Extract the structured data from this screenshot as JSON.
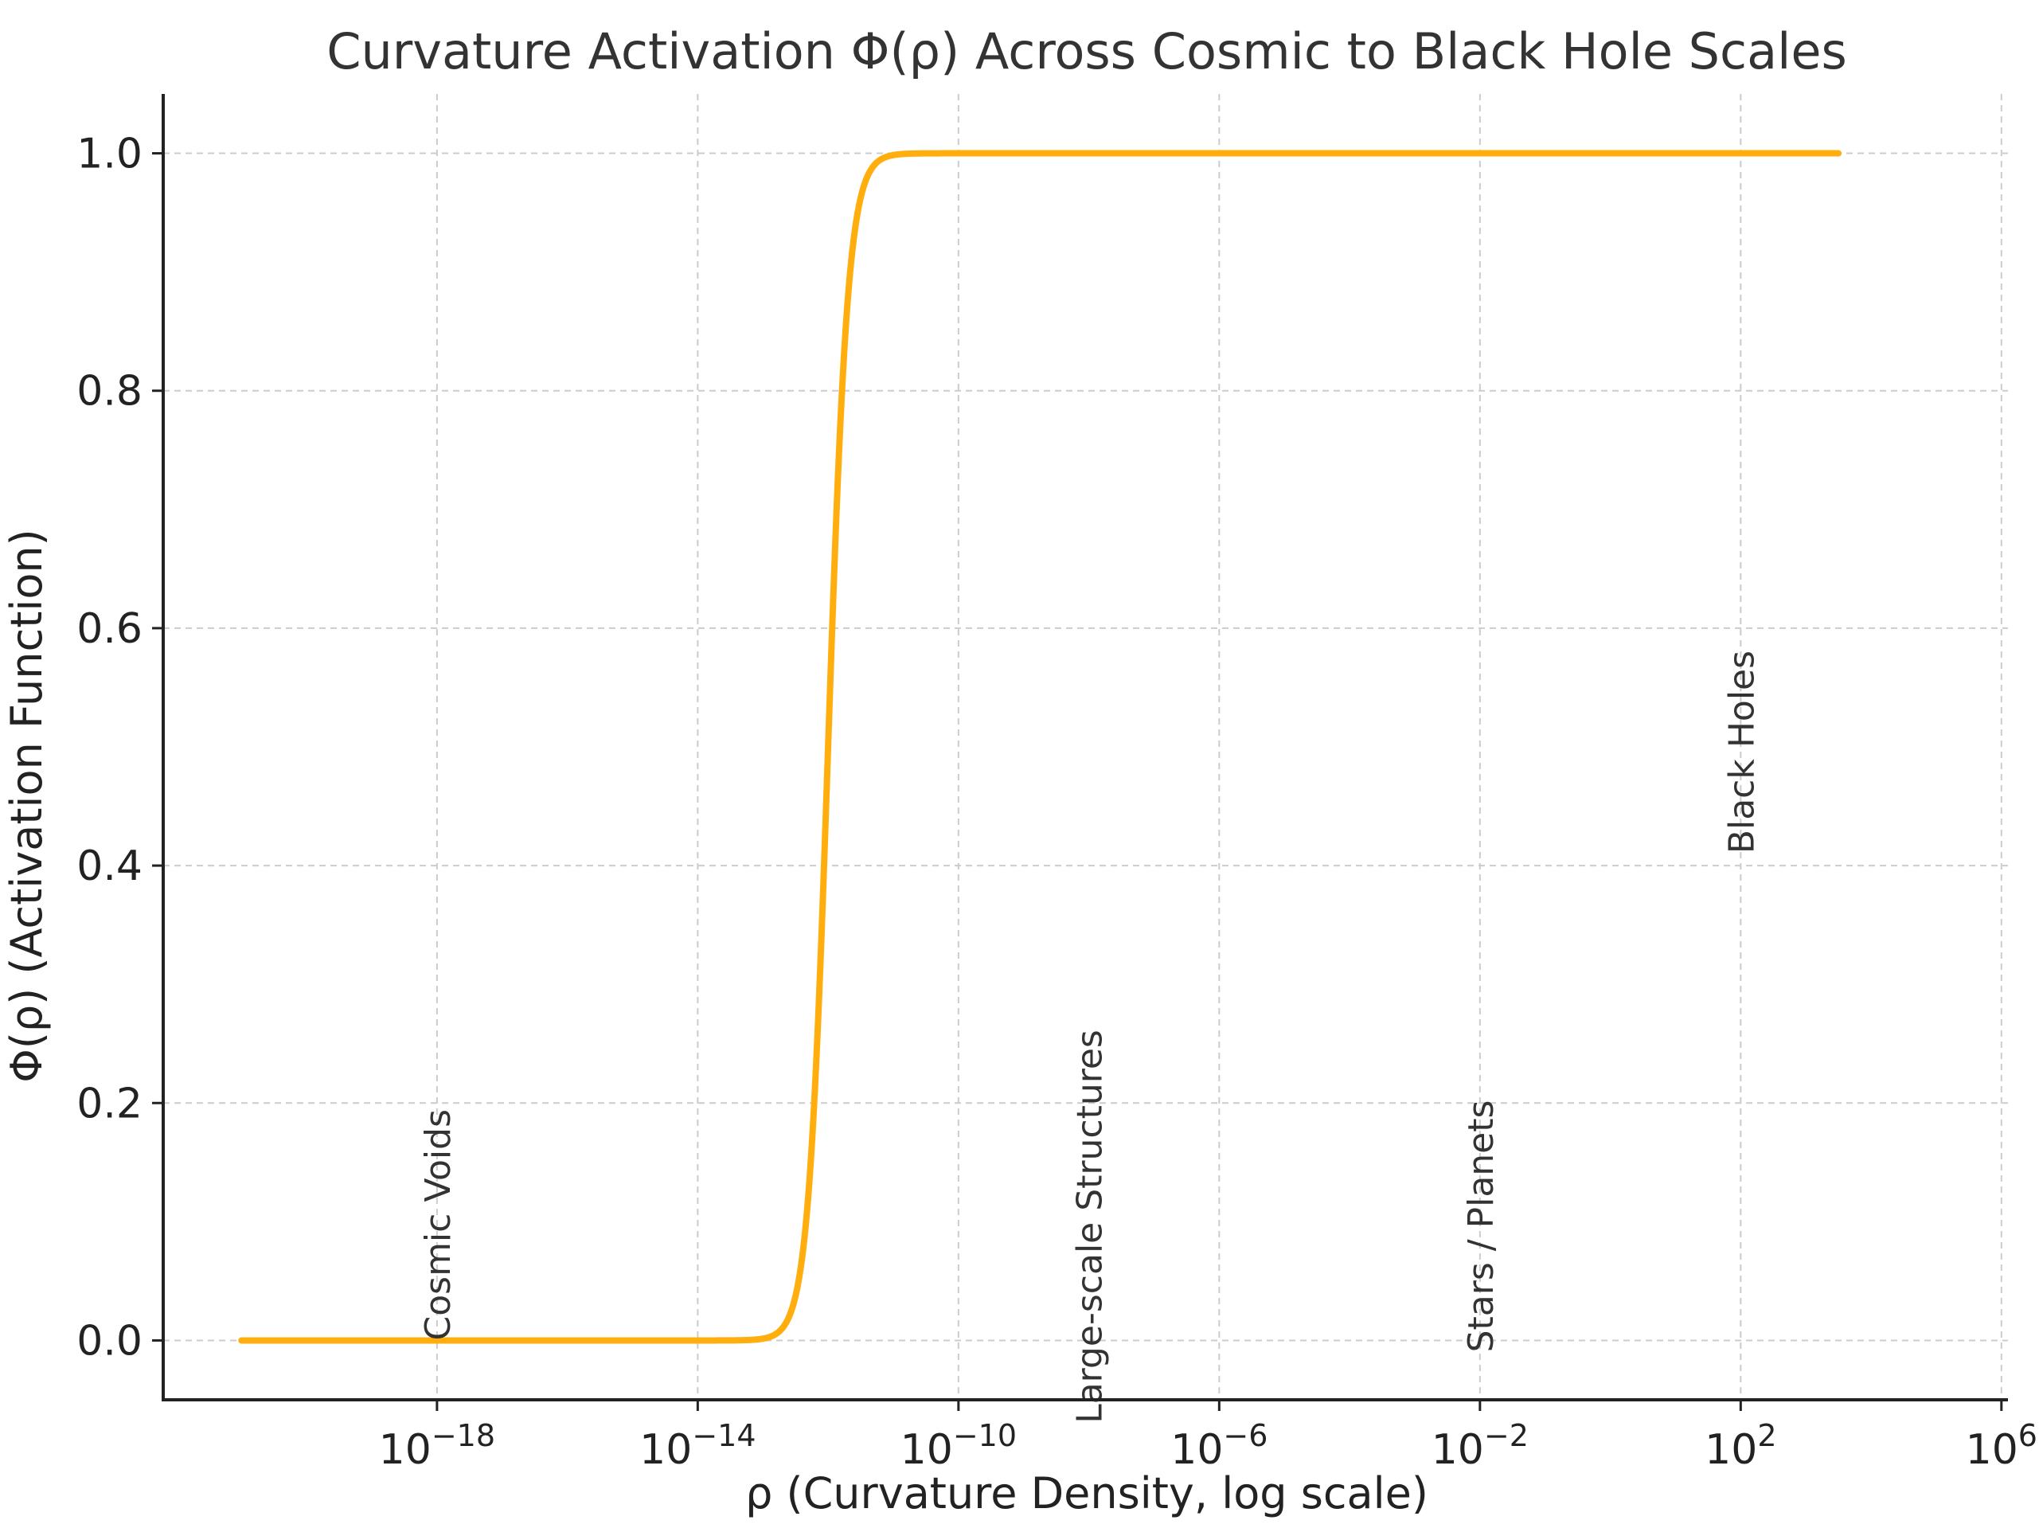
{
  "chart_data": {
    "type": "line",
    "title": "Curvature Activation Φ(ρ) Across Cosmic to Black Hole Scales",
    "xlabel": "ρ (Curvature Density, log scale)",
    "ylabel": "Φ(ρ) (Activation Function)",
    "xscale": "log",
    "xlim_log10": [
      -22.2,
      6.1
    ],
    "ylim": [
      -0.05,
      1.05
    ],
    "x_ticks_log10": [
      -18,
      -14,
      -10,
      -6,
      -2,
      2,
      6
    ],
    "x_tick_labels": [
      {
        "base": "10",
        "exp": "−18"
      },
      {
        "base": "10",
        "exp": "−14"
      },
      {
        "base": "10",
        "exp": "−10"
      },
      {
        "base": "10",
        "exp": "−6"
      },
      {
        "base": "10",
        "exp": "−2"
      },
      {
        "base": "10",
        "exp": "2"
      },
      {
        "base": "10",
        "exp": "6"
      }
    ],
    "y_ticks": [
      0.0,
      0.2,
      0.4,
      0.6,
      0.8,
      1.0
    ],
    "y_tick_labels": [
      "0.0",
      "0.2",
      "0.4",
      "0.6",
      "0.8",
      "1.0"
    ],
    "grid": true,
    "series": [
      {
        "color": "#ffae0d",
        "x_range_log10": [
          -21,
          3.5
        ],
        "function": "logistic",
        "midpoint_log10": -12,
        "steepness_per_decade": 6.5
      }
    ],
    "annotations": [
      {
        "text": "Cosmic Voids",
        "x_log10": -18,
        "y": 0.0,
        "rotation": 90
      },
      {
        "text": "Large-scale Structures",
        "x_log10": -8,
        "y": -0.07,
        "rotation": 90
      },
      {
        "text": "Stars / Planets",
        "x_log10": -2,
        "y": -0.01,
        "rotation": 90
      },
      {
        "text": "Black Holes",
        "x_log10": 2,
        "y": 0.41,
        "rotation": 90
      }
    ]
  }
}
